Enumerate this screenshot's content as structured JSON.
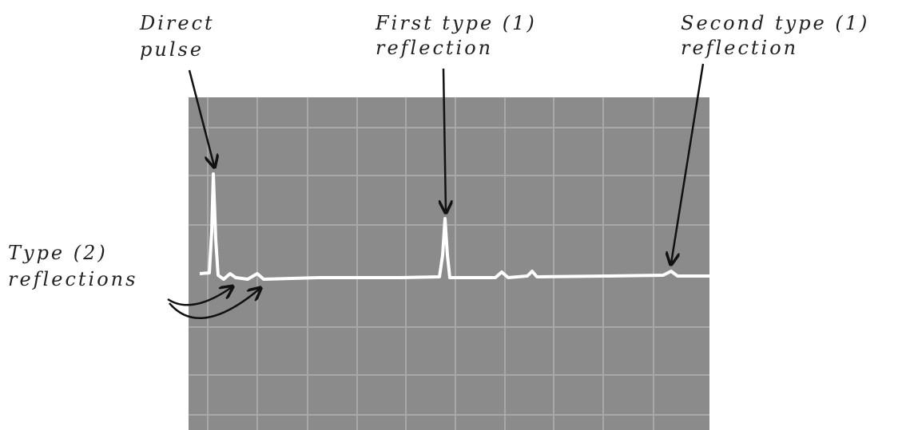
{
  "annotations": {
    "direct_pulse": [
      "Direct",
      "pulse"
    ],
    "first_type": [
      "First type (1)",
      "reflection"
    ],
    "second_type": [
      "Second type (1)",
      "reflection"
    ],
    "type2": [
      "Type (2)",
      "reflections"
    ]
  }
}
